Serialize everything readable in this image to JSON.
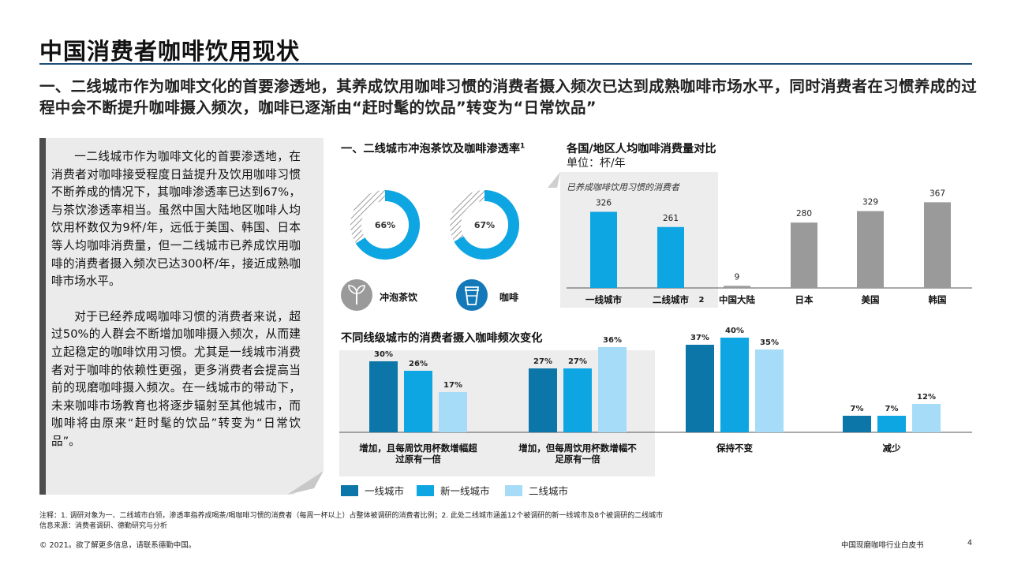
{
  "page": {
    "title": "中国消费者咖啡饮用现状",
    "subtitle": "一、二线城市作为咖啡文化的首要渗透地，其养成饮用咖啡习惯的消费者摄入频次已达到成熟咖啡市场水平，同时消费者在习惯养成的过程中会不断提升咖啡摄入频次，咖啡已逐渐由“赶时髦的饮品”转变为“日常饮品”"
  },
  "note": {
    "p1": "一二线城市作为咖啡文化的首要渗透地，在消费者对咖啡接受程度日益提升及饮用咖啡习惯不断养成的情况下，其咖啡渗透率已达到67%，与茶饮渗透率相当。虽然中国大陆地区咖啡人均饮用杯数仅为9杯/年，远低于美国、韩国、日本等人均咖啡消费量，但一二线城市已养成饮用咖啡的消费者摄入频次已达300杯/年，接近成熟咖啡市场水平。",
    "p2": "对于已经养成喝咖啡习惯的消费者来说，超过50%的人群会不断增加咖啡摄入频次，从而建立起稳定的咖啡饮用习惯。尤其是一线城市消费者对于咖啡的依赖性更强，更多消费者会提高当前的现磨咖啡摄入频次。在一线城市的带动下，未来咖啡市场教育也将逐步辐射至其他城市，而咖啡将由原来“赶时髦的饮品”转变为“日常饮品”。"
  },
  "penetration": {
    "heading": "一、二线城市冲泡茶饮及咖啡渗透率",
    "heading_sup": "1",
    "items": [
      {
        "label": "冲泡茶饮",
        "value": 66,
        "value_label": "66%",
        "icon": "plant-sprout-icon"
      },
      {
        "label": "咖啡",
        "value": 67,
        "value_label": "67%",
        "icon": "coffee-cup-icon"
      }
    ]
  },
  "consumption": {
    "heading": "各国/地区人均咖啡消费量对比",
    "unit": "单位：杯/年",
    "panel_label": "已养成咖啡饮用习惯的消费者",
    "footnote_mark": "2"
  },
  "frequency": {
    "heading": "不同线级城市的消费者摄入咖啡频次变化"
  },
  "chart_data": [
    {
      "type": "pie",
      "title": "一、二线城市冲泡茶饮及咖啡渗透率",
      "series": [
        {
          "name": "冲泡茶饮",
          "values": [
            66
          ]
        },
        {
          "name": "咖啡",
          "values": [
            67
          ]
        }
      ],
      "unit": "%"
    },
    {
      "type": "bar",
      "title": "各国/地区人均咖啡消费量对比",
      "ylabel": "单位：杯/年",
      "categories": [
        "一线城市",
        "二线城市",
        "中国大陆",
        "日本",
        "美国",
        "韩国"
      ],
      "values": [
        326,
        261,
        9,
        280,
        329,
        367
      ],
      "colors": [
        "#0ea5e3",
        "#0ea5e3",
        "#9a9a9a",
        "#9a9a9a",
        "#9a9a9a",
        "#9a9a9a"
      ],
      "ylim": [
        0,
        400
      ]
    },
    {
      "type": "bar",
      "title": "不同线级城市的消费者摄入咖啡频次变化",
      "categories": [
        "增加，且每周饮用杯数增幅超过原有一倍",
        "增加，但每周饮用杯数增幅不足原有一倍",
        "保持不变",
        "减少"
      ],
      "series": [
        {
          "name": "一线城市",
          "values": [
            30,
            27,
            37,
            7
          ],
          "color": "#0d76a8"
        },
        {
          "name": "新一线城市",
          "values": [
            26,
            27,
            40,
            7
          ],
          "color": "#0ea5e3"
        },
        {
          "name": "二线城市",
          "values": [
            17,
            36,
            35,
            12
          ],
          "color": "#a6dcf7"
        }
      ],
      "ylim": [
        0,
        45
      ],
      "unit": "%"
    }
  ],
  "footer": {
    "note": "注释：1. 调研对象为一、二线城市白领，渗透率指养成喝茶/喝咖啡习惯的消费者（每周一杯以上）占整体被调研的消费者比例；2. 此处二线城市涵盖12个被调研的新一线城市及8个被调研的二线城市",
    "source": "信息来源：消费者调研、德勤研究与分析",
    "copyright": "© 2021。欲了解更多信息，请联系德勤中国。",
    "doc_title": "中国现磨咖啡行业白皮书",
    "page_number": "4"
  }
}
